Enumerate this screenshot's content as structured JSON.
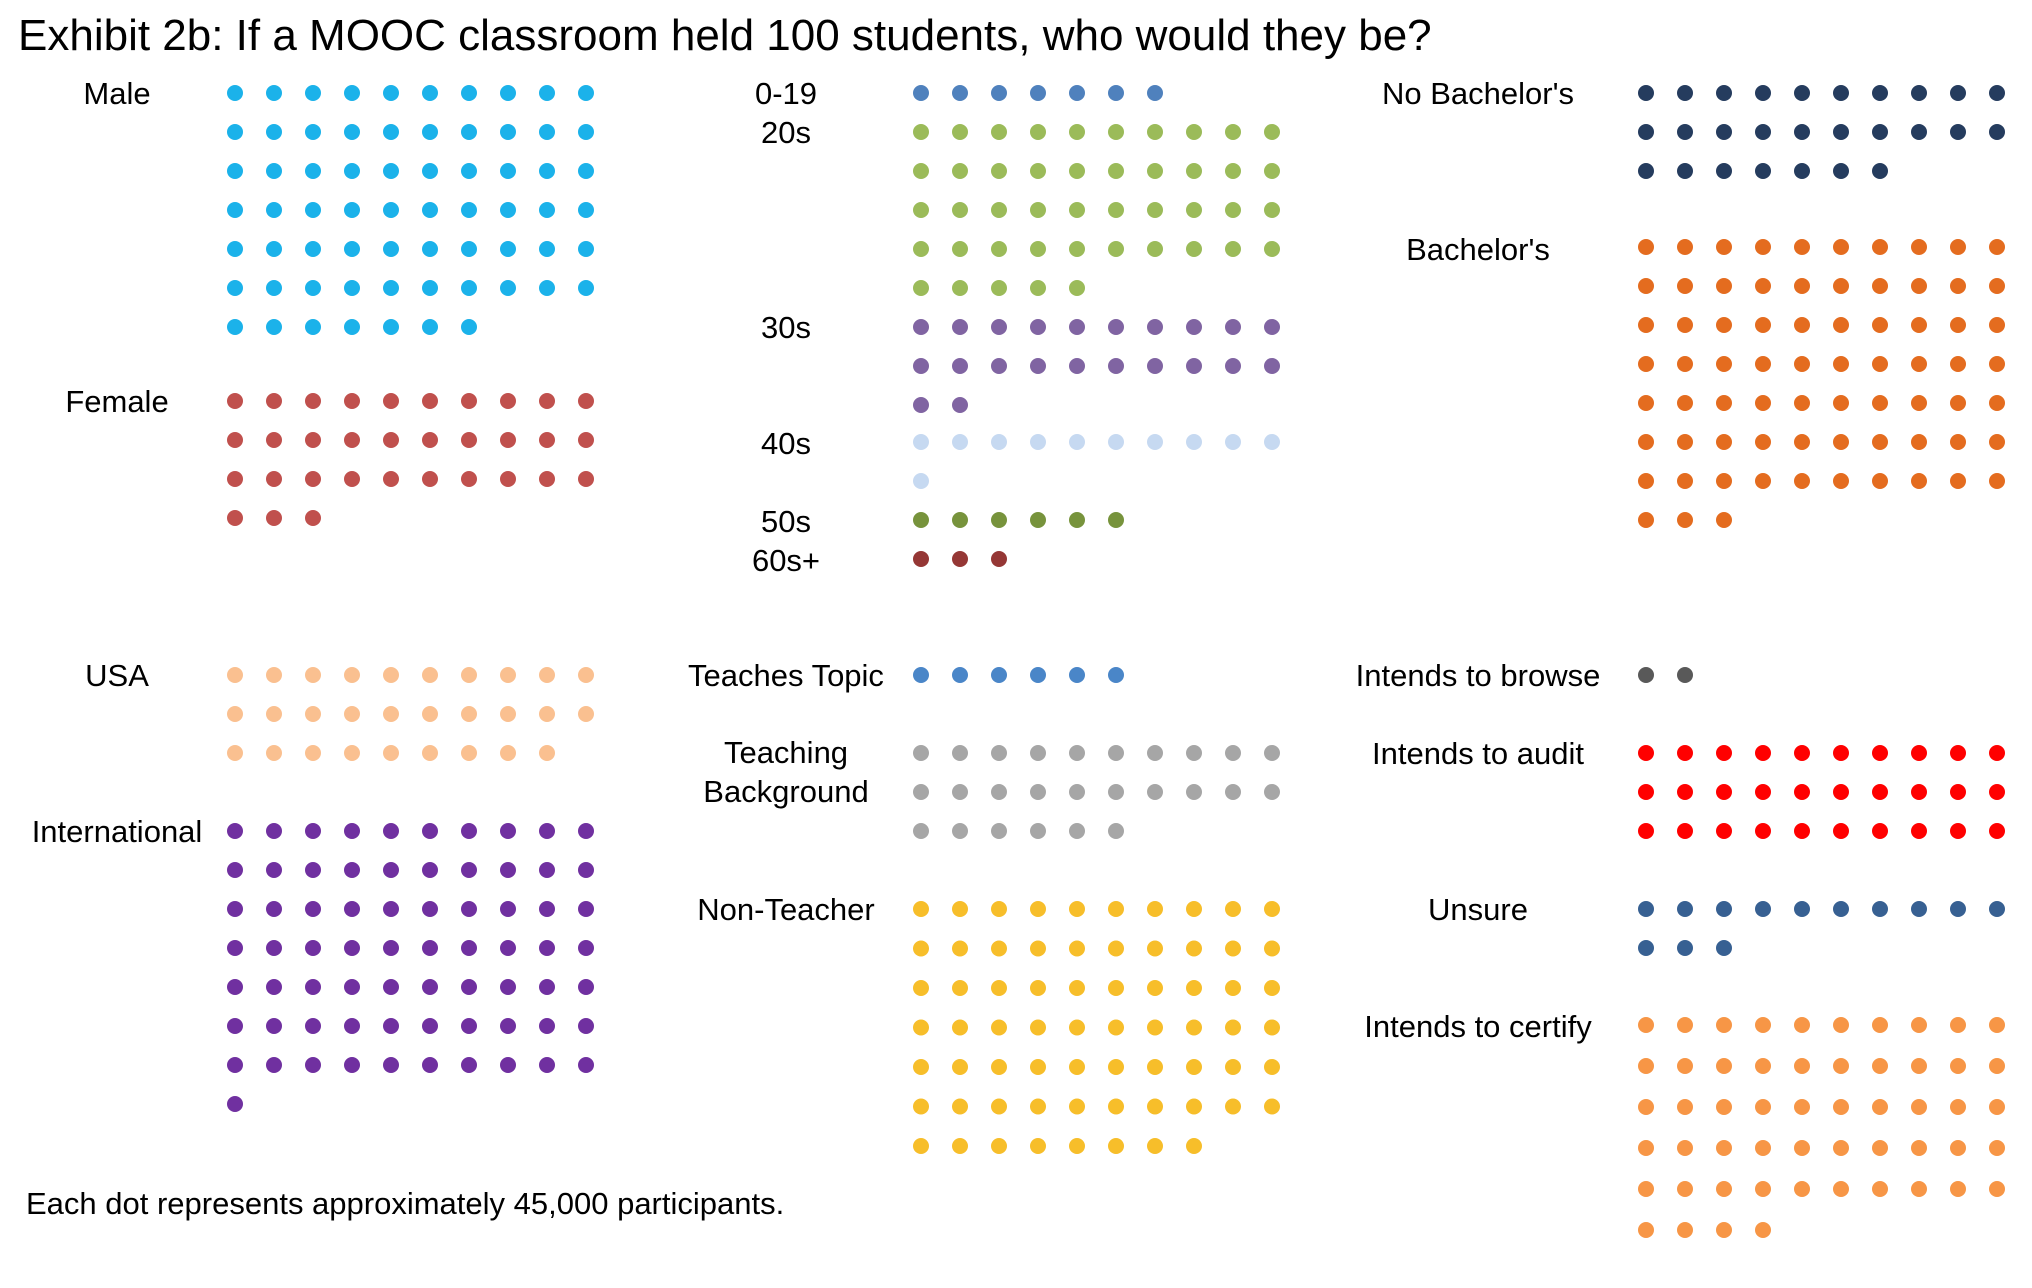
{
  "chart_data": {
    "type": "dot-matrix",
    "title": "Exhibit 2b: If a MOOC classroom held 100 students, who would they be?",
    "note": "Each dot represents approximately 45,000 participants.",
    "total_dots": 100,
    "panels": [
      {
        "id": "gender",
        "groups": [
          {
            "label": "Male",
            "value": 67,
            "color": "#1bb2ea"
          },
          {
            "label": "Female",
            "value": 33,
            "color": "#c0504d"
          }
        ]
      },
      {
        "id": "age",
        "groups": [
          {
            "label": "0-19",
            "value": 7,
            "color": "#4f81bd"
          },
          {
            "label": "20s",
            "value": 45,
            "color": "#9bbb59"
          },
          {
            "label": "30s",
            "value": 22,
            "color": "#8064a2"
          },
          {
            "label": "40s",
            "value": 11,
            "color": "#c6d9f1"
          },
          {
            "label": "50s",
            "value": 6,
            "color": "#77933c"
          },
          {
            "label": "60s+",
            "value": 3,
            "color": "#953735"
          }
        ]
      },
      {
        "id": "education",
        "groups": [
          {
            "label": "No Bachelor's",
            "value": 27,
            "color": "#253c5e"
          },
          {
            "label": "Bachelor's",
            "value": 73,
            "color": "#e46c1f"
          }
        ]
      },
      {
        "id": "country",
        "groups": [
          {
            "label": "USA",
            "value": 29,
            "color": "#fac090"
          },
          {
            "label": "International",
            "value": 71,
            "color": "#7030a0"
          }
        ]
      },
      {
        "id": "teaching",
        "groups": [
          {
            "label": "Teaches Topic",
            "value": 6,
            "color": "#4a86c8"
          },
          {
            "label": "Teaching\nBackground",
            "value": 26,
            "color": "#a6a6a6"
          },
          {
            "label": "Non-Teacher",
            "value": 68,
            "color": "#f7be2a"
          }
        ]
      },
      {
        "id": "intention",
        "groups": [
          {
            "label": "Intends to browse",
            "value": 2,
            "color": "#595959"
          },
          {
            "label": "Intends to audit",
            "value": 30,
            "color": "#ff0000"
          },
          {
            "label": "Unsure",
            "value": 13,
            "color": "#376092"
          },
          {
            "label": "Intends to certify",
            "value": 54,
            "color": "#f79646"
          }
        ]
      }
    ]
  }
}
